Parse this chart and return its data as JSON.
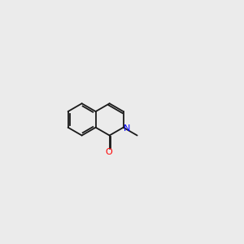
{
  "bg_color": "#ebebeb",
  "bond_color": "#1a1a1a",
  "N_color": "#0000ff",
  "O_color": "#ff0000",
  "H_color": "#808080",
  "font_size": 7.5,
  "lw": 1.3
}
